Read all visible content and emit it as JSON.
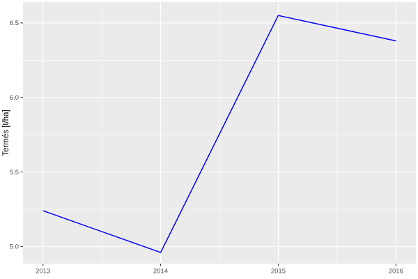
{
  "chart_data": {
    "type": "line",
    "title": "",
    "xlabel": "",
    "ylabel": "Termés [t/ha]",
    "x": [
      2013,
      2014,
      2015,
      2016
    ],
    "series": [
      {
        "name": "termes",
        "values": [
          5.24,
          4.96,
          6.55,
          6.38
        ],
        "color": "#0000FA",
        "width": 1.5
      }
    ],
    "xlim": [
      2012.83,
      2016.17
    ],
    "ylim": [
      4.885,
      6.64
    ],
    "x_ticks": [
      2013,
      2014,
      2015,
      2016
    ],
    "x_tick_labels": [
      "2013",
      "2014",
      "2015",
      "2016"
    ],
    "y_ticks": [
      5.0,
      5.5,
      6.0,
      6.5
    ],
    "y_tick_labels": [
      "5.0",
      "5.5",
      "6.0",
      "6.5"
    ],
    "x_minor_ticks": [
      2013.5,
      2014.5,
      2015.5
    ],
    "y_minor_ticks": [
      5.25,
      5.75,
      6.25
    ],
    "grid": true,
    "legend_position": "none",
    "colors": {
      "panel_background": "#EBEBEB",
      "outer_background": "#FFFFFF",
      "grid_major": "#FFFFFF",
      "grid_minor": "#FFFFFF",
      "tick_mark": "#333333",
      "tick_label": "#4D4D4D",
      "axis_title": "#000000"
    }
  }
}
